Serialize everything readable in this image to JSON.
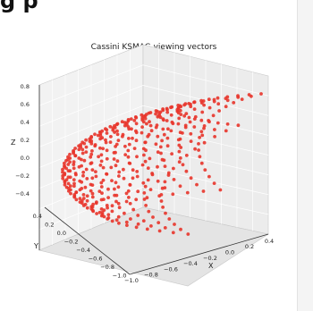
{
  "page": {
    "heading": "g  p"
  },
  "chart_data": {
    "type": "scatter",
    "projection": "3d",
    "title": "Cassini KSMAG viewing vectors",
    "xlabel": "X",
    "ylabel": "Y",
    "zlabel": "Z",
    "xlim": [
      -1.0,
      0.5
    ],
    "ylim": [
      -1.0,
      0.5
    ],
    "zlim": [
      -0.5,
      0.9
    ],
    "xticks": [
      "−1.0",
      "−0.8",
      "−0.6",
      "−0.4",
      "−0.2",
      "0.0",
      "0.2",
      "0.4"
    ],
    "yticks": [
      "−1.0",
      "−0.8",
      "−0.6",
      "−0.4",
      "−0.2",
      "0.0",
      "0.2",
      "0.4"
    ],
    "zticks": [
      "−0.4",
      "−0.2",
      "0.0",
      "0.2",
      "0.4",
      "0.6",
      "0.8"
    ],
    "grid": true,
    "marker_color": "#e8342a",
    "point_cloud": {
      "description": "unit viewing vectors on a sphere cap (grid of constant-longitude columns)",
      "azimuth_range_deg": [
        -170,
        -65
      ],
      "elevation_range_deg": [
        -30,
        52
      ],
      "columns": 24,
      "rows": 19
    }
  }
}
